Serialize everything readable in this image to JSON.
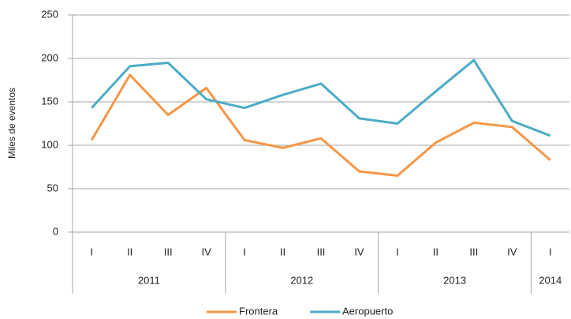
{
  "chart_data": {
    "type": "line",
    "ylabel": "Miles de eventos",
    "categories": [
      "I",
      "II",
      "III",
      "IV",
      "I",
      "II",
      "III",
      "IV",
      "I",
      "II",
      "III",
      "IV",
      "I"
    ],
    "groups": [
      {
        "label": "2011",
        "count": 4
      },
      {
        "label": "2012",
        "count": 4
      },
      {
        "label": "2013",
        "count": 4
      },
      {
        "label": "2014",
        "count": 1
      }
    ],
    "series": [
      {
        "name": "Frontera",
        "color": "#f79646",
        "values": [
          106,
          181,
          135,
          166,
          106,
          97,
          108,
          70,
          65,
          103,
          126,
          121,
          83
        ]
      },
      {
        "name": "Aeropuerto",
        "color": "#4bacc6",
        "values": [
          143,
          191,
          195,
          153,
          143,
          158,
          171,
          131,
          125,
          162,
          198,
          128,
          111
        ]
      }
    ],
    "ylim": [
      0,
      250
    ],
    "yticks": [
      0,
      50,
      100,
      150,
      200,
      250
    ],
    "grid": true,
    "legend": "bottom"
  }
}
